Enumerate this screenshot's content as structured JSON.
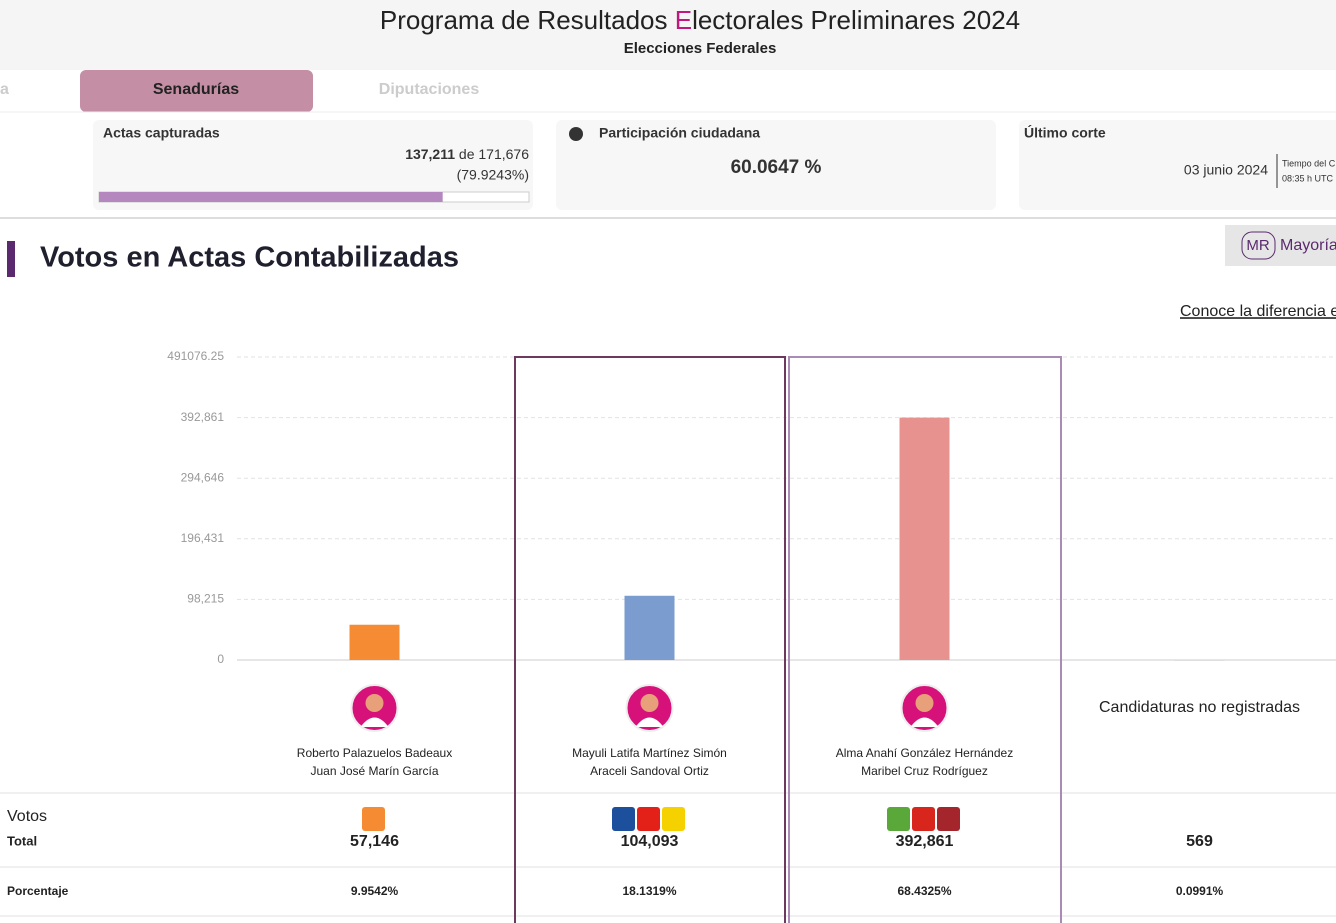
{
  "header": {
    "title_parts": [
      "Programa de Resultados ",
      "E",
      "lectorales Preliminares 2024"
    ],
    "subtitle": "Elecciones Federales"
  },
  "tabs": [
    "a",
    "Senadurías",
    "Diputaciones"
  ],
  "cards": [
    {
      "title": "Actas capturadas",
      "captured": "137,211",
      "of_total": " de 171,676",
      "percent": "(79.9243%)",
      "progress": 79.9243
    },
    {
      "title": "Participación ciudadana",
      "value": "60.0647 %"
    },
    {
      "title": "Último corte",
      "date": "03 junio 2024",
      "note_1": "Tiempo del C",
      "note_2": "08:35 h UTC"
    }
  ],
  "section": {
    "title": "Votos en Actas Contabilizadas",
    "badge": "MR",
    "badge_text": "Mayoría",
    "link": "Conoce la diferencia e"
  },
  "chart_data": {
    "type": "bar",
    "categories": [
      [
        "Roberto Palazuelos Badeaux",
        "Juan José Marín García"
      ],
      [
        "Mayuli Latifa Martínez Simón",
        "Araceli Sandoval Ortiz"
      ],
      [
        "Alma Anahí González Hernández",
        "Maribel Cruz Rodríguez"
      ],
      [
        "Candidaturas no registradas"
      ]
    ],
    "values": [
      57146,
      104093,
      392861,
      569
    ],
    "value_labels": [
      "57,146",
      "104,093",
      "392,861",
      "569"
    ],
    "colors": [
      "#f58c33",
      "#7a9ccf",
      "#e8928f",
      "#cccccc"
    ],
    "ylim": [
      0,
      491076.25
    ],
    "yticks": [
      0,
      {
        "value": 98215,
        "label": "98,215"
      },
      {
        "value": 196431,
        "label": "196,431"
      },
      {
        "value": 294646,
        "label": "294,646"
      },
      {
        "value": 392861,
        "label": "392,861"
      },
      491076.25
    ],
    "grid": true
  },
  "table": {
    "votes_label": "Votos",
    "total_label": "Total",
    "percent_label": "Porcentaje",
    "percentages": [
      "9.9542%",
      "18.1319%",
      "68.4325%",
      "0.0991%"
    ]
  }
}
